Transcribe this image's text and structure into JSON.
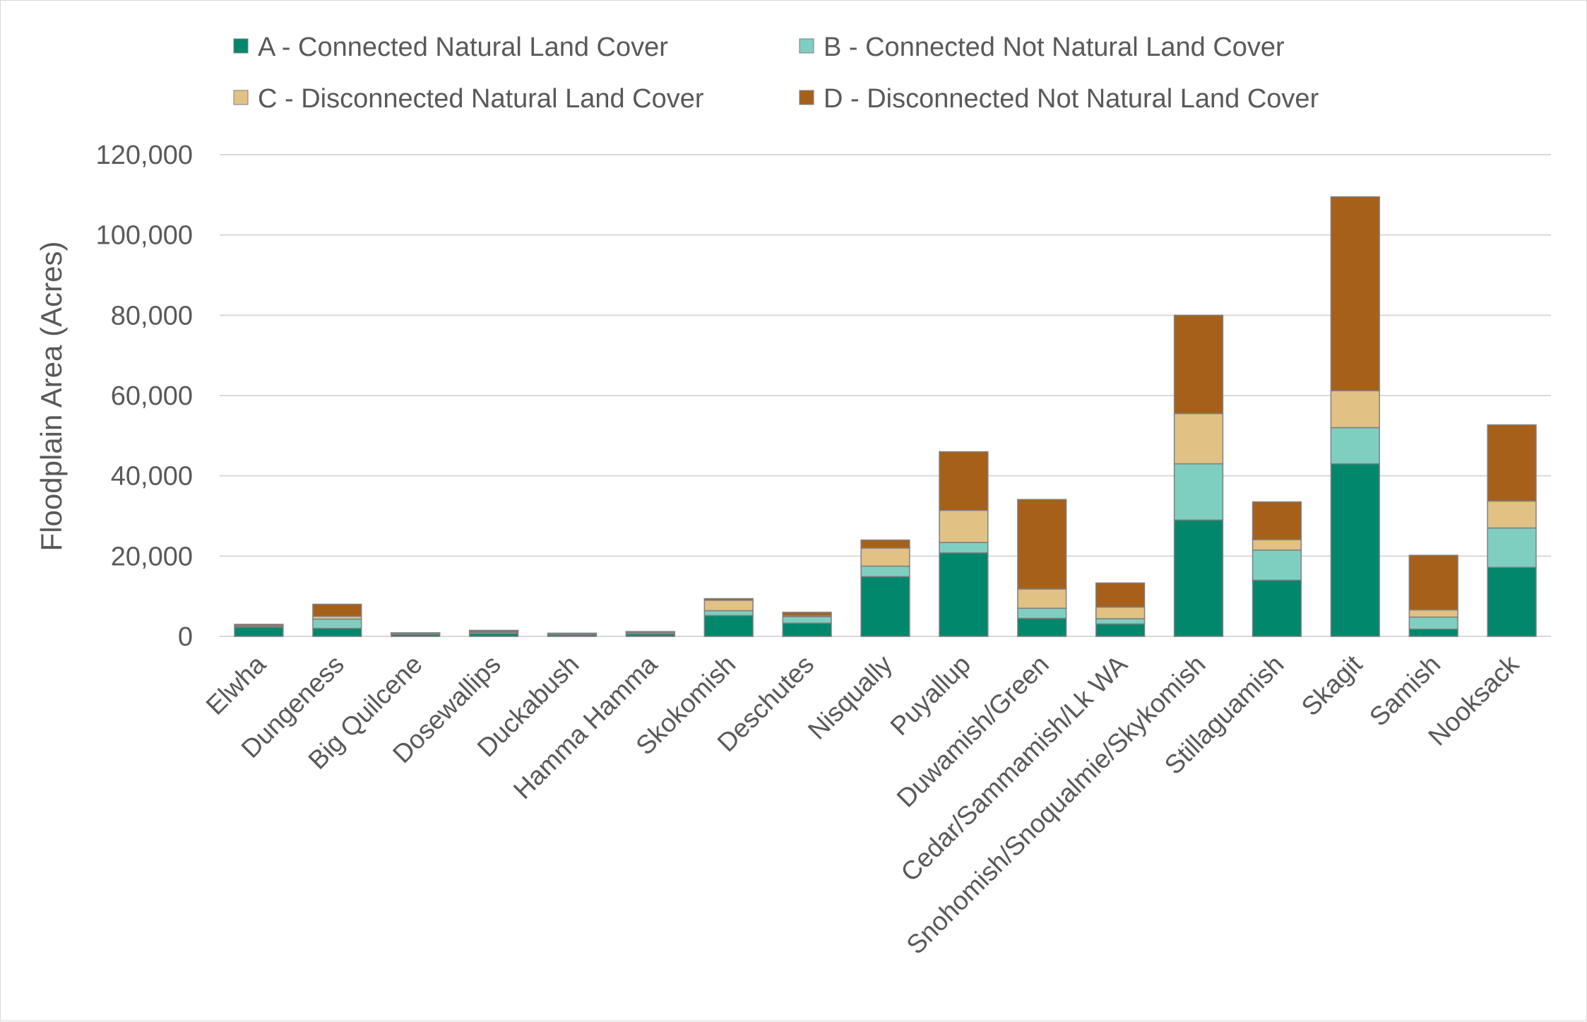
{
  "chart_data": {
    "type": "bar",
    "stacked": true,
    "title": "",
    "xlabel": "",
    "ylabel": "Floodplain Area (Acres)",
    "ylim": [
      0,
      120000
    ],
    "yticks": [
      0,
      20000,
      40000,
      60000,
      80000,
      100000,
      120000
    ],
    "ytick_labels": [
      "0",
      "20,000",
      "40,000",
      "60,000",
      "80,000",
      "100,000",
      "120,000"
    ],
    "grid": true,
    "legend_position": "top",
    "categories": [
      "Elwha",
      "Dungeness",
      "Big Quilcene",
      "Dosewallips",
      "Duckabush",
      "Hamma Hamma",
      "Skokomish",
      "Deschutes",
      "Nisqually",
      "Puyallup",
      "Duwamish/Green",
      "Cedar/Sammamish/Lk WA",
      "Snohomish/Snoqualmie/Skykomish",
      "Stillaguamish",
      "Skagit",
      "Samish",
      "Nooksack"
    ],
    "series": [
      {
        "name": "A - Connected Natural Land Cover",
        "color": "#00876c",
        "values": [
          2300,
          2000,
          500,
          700,
          400,
          600,
          5200,
          3300,
          14900,
          20800,
          4500,
          3100,
          29000,
          14000,
          43000,
          1800,
          17200
        ]
      },
      {
        "name": "B - Connected Not Natural Land Cover",
        "color": "#7fcfc1",
        "values": [
          200,
          2300,
          200,
          300,
          200,
          300,
          1200,
          1600,
          2600,
          2600,
          2500,
          1300,
          14000,
          7500,
          9000,
          3000,
          9800
        ]
      },
      {
        "name": "C - Disconnected Natural Land Cover",
        "color": "#e2c185",
        "values": [
          200,
          700,
          100,
          200,
          100,
          100,
          2600,
          300,
          4500,
          8000,
          4800,
          2900,
          12500,
          2600,
          9200,
          1800,
          6700
        ]
      },
      {
        "name": "D - Disconnected Not Natural Land Cover",
        "color": "#a7601a",
        "values": [
          300,
          3000,
          100,
          300,
          100,
          200,
          400,
          800,
          2000,
          14600,
          22300,
          6000,
          24500,
          9400,
          48300,
          13600,
          19000
        ]
      }
    ]
  }
}
